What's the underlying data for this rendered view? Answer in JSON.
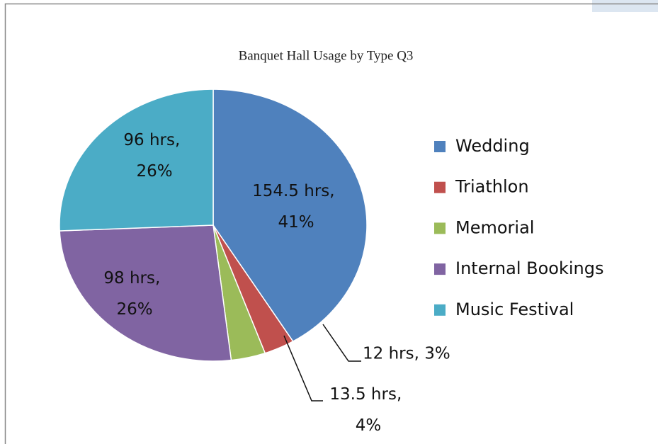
{
  "chart_data": {
    "type": "pie",
    "title": "Banquet Hall Usage by Type Q3",
    "categories": [
      "Wedding",
      "Triathlon",
      "Memorial",
      "Internal Bookings",
      "Music Festival"
    ],
    "values": [
      154.5,
      12,
      13.5,
      98,
      96
    ],
    "value_labels": [
      "154.5 hrs, 41%",
      "12 hrs, 3%",
      "13.5 hrs, 4%",
      "98 hrs, 26%",
      "96 hrs, 26%"
    ],
    "colors": [
      "#4f81bd",
      "#c0504d",
      "#9bbb59",
      "#8064a2",
      "#4bacc6"
    ],
    "legend": "right"
  }
}
